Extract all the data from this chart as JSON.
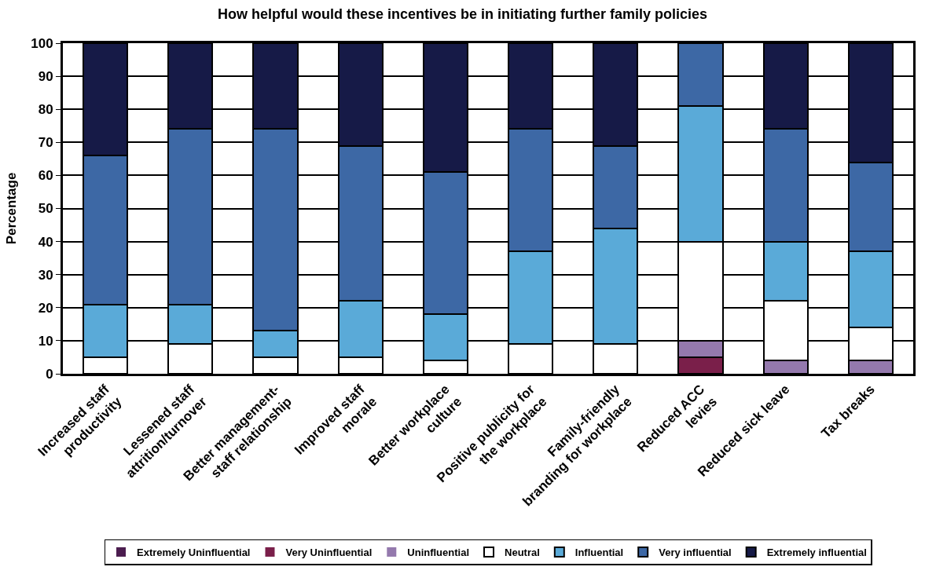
{
  "chart_data": {
    "type": "bar",
    "stacked": true,
    "title": "How helpful would these incentives be in initiating further family policies",
    "ylabel": "Percentage",
    "categories": [
      "Increased staff\nproductivity",
      "Lessened staff\nattrition/turnover",
      "Better management-\nstaff relationship",
      "Improved staff\nmorale",
      "Better workplace\nculture",
      "Positive publicity for\nthe workplace",
      "Family-friendly\nbranding for workplace",
      "Reduced ACC\nlevies",
      "Reduced sick leave",
      "Tax breaks"
    ],
    "series": [
      {
        "name": "Extremely Uninfluential",
        "color": "#4b1d4f",
        "values": [
          0,
          0,
          0,
          0,
          0,
          0,
          0,
          0,
          0,
          0
        ]
      },
      {
        "name": "Very Uninfluential",
        "color": "#7a1f4a",
        "values": [
          0,
          0,
          0,
          0,
          0,
          0,
          0,
          5,
          0,
          0
        ]
      },
      {
        "name": "Uninfluential",
        "color": "#9479ad",
        "values": [
          0,
          0,
          0,
          0,
          0,
          0,
          0,
          5,
          4,
          4
        ]
      },
      {
        "name": "Neutral",
        "color": "#ffffff",
        "values": [
          5,
          9,
          5,
          5,
          4,
          9,
          9,
          30,
          18,
          10
        ]
      },
      {
        "name": "Influential",
        "color": "#5aaad8",
        "values": [
          16,
          12,
          8,
          17,
          14,
          28,
          35,
          41,
          18,
          23
        ]
      },
      {
        "name": "Very influential",
        "color": "#3d68a5",
        "values": [
          45,
          53,
          61,
          47,
          43,
          37,
          25,
          19,
          34,
          27
        ]
      },
      {
        "name": "Extremely influential",
        "color": "#161a47",
        "values": [
          34,
          26,
          26,
          31,
          39,
          26,
          31,
          0,
          26,
          36
        ]
      }
    ],
    "ylim": [
      0,
      100
    ],
    "yticks": [
      0,
      10,
      20,
      30,
      40,
      50,
      60,
      70,
      80,
      90,
      100
    ],
    "grid": "y",
    "legend": "bottom"
  }
}
